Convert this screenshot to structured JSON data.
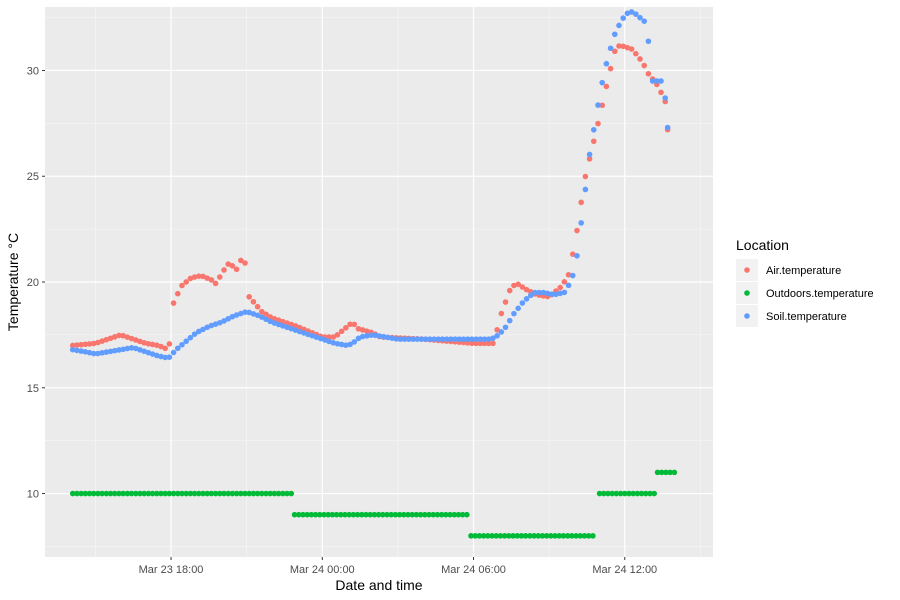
{
  "colors": {
    "panel": "#EBEBEB",
    "grid_major": "#FFFFFF",
    "Air.temperature": "#F8766D",
    "Outdoors.temperature": "#00BA38",
    "Soil.temperature": "#619CFF"
  },
  "chart_data": {
    "type": "scatter",
    "xlabel": "Date and time",
    "ylabel": "Temperature °C",
    "legend": {
      "title": "Location",
      "placement": "right"
    },
    "x_ticks": [
      "Mar 23 18:00",
      "Mar 24 00:00",
      "Mar 24 06:00",
      "Mar 24 12:00"
    ],
    "x_tick_hours": [
      18,
      24,
      30,
      36
    ],
    "xlim_hours": [
      13.0,
      39.5
    ],
    "y_ticks": [
      "10",
      "15",
      "20",
      "25",
      "30"
    ],
    "y_tick_values": [
      10,
      15,
      20,
      25,
      30
    ],
    "ylim": [
      7.0,
      33.0
    ],
    "x_start_hours": 14.1,
    "x_step_hours": 0.1667,
    "grid": true,
    "series": [
      {
        "name": "Air.temperature",
        "segments": [
          [
            14.1,
            17.0
          ],
          [
            15.0,
            17.1
          ],
          [
            16.0,
            17.5
          ],
          [
            16.5,
            17.3
          ],
          [
            17.0,
            17.1
          ],
          [
            17.5,
            17.0
          ],
          [
            17.9,
            16.8
          ],
          [
            18.0,
            17.6
          ],
          [
            18.1,
            19.0
          ],
          [
            18.4,
            19.8
          ],
          [
            18.8,
            20.2
          ],
          [
            19.2,
            20.3
          ],
          [
            19.6,
            20.1
          ],
          [
            19.8,
            19.9
          ],
          [
            20.0,
            20.4
          ],
          [
            20.3,
            20.9
          ],
          [
            20.6,
            20.6
          ],
          [
            20.8,
            21.1
          ],
          [
            21.0,
            20.8
          ],
          [
            21.1,
            19.3
          ],
          [
            21.6,
            18.6
          ],
          [
            22.0,
            18.3
          ],
          [
            23.0,
            17.9
          ],
          [
            24.0,
            17.4
          ],
          [
            24.5,
            17.4
          ],
          [
            24.8,
            17.7
          ],
          [
            25.2,
            18.1
          ],
          [
            25.4,
            17.8
          ],
          [
            26.0,
            17.6
          ],
          [
            26.3,
            17.4
          ],
          [
            28.0,
            17.3
          ],
          [
            29.0,
            17.2
          ],
          [
            30.0,
            17.1
          ],
          [
            30.8,
            17.1
          ],
          [
            31.1,
            18.5
          ],
          [
            31.5,
            19.8
          ],
          [
            31.8,
            19.9
          ],
          [
            32.0,
            19.7
          ],
          [
            32.5,
            19.4
          ],
          [
            33.0,
            19.3
          ],
          [
            33.5,
            19.8
          ],
          [
            33.8,
            20.4
          ],
          [
            34.1,
            22.4
          ],
          [
            34.4,
            24.8
          ],
          [
            34.7,
            26.3
          ],
          [
            35.0,
            27.8
          ],
          [
            35.3,
            29.4
          ],
          [
            35.6,
            30.9
          ],
          [
            35.8,
            31.2
          ],
          [
            36.3,
            31.0
          ],
          [
            36.7,
            30.4
          ],
          [
            37.0,
            29.7
          ],
          [
            37.2,
            29.5
          ],
          [
            37.6,
            28.6
          ],
          [
            37.7,
            27.2
          ]
        ]
      },
      {
        "name": "Outdoors.temperature",
        "segments": [
          [
            14.1,
            22.8,
            10
          ],
          [
            22.9,
            29.8,
            9
          ],
          [
            29.9,
            34.9,
            8
          ],
          [
            35.0,
            37.2,
            10
          ],
          [
            37.3,
            38.0,
            11
          ]
        ]
      },
      {
        "name": "Soil.temperature",
        "segments": [
          [
            14.1,
            16.8
          ],
          [
            14.6,
            16.7
          ],
          [
            15.0,
            16.6
          ],
          [
            15.5,
            16.7
          ],
          [
            16.0,
            16.8
          ],
          [
            16.5,
            16.9
          ],
          [
            17.0,
            16.7
          ],
          [
            17.5,
            16.5
          ],
          [
            17.9,
            16.4
          ],
          [
            18.2,
            16.8
          ],
          [
            18.6,
            17.2
          ],
          [
            19.0,
            17.6
          ],
          [
            19.5,
            17.9
          ],
          [
            20.0,
            18.1
          ],
          [
            20.5,
            18.4
          ],
          [
            21.0,
            18.6
          ],
          [
            21.5,
            18.4
          ],
          [
            22.0,
            18.1
          ],
          [
            22.5,
            17.9
          ],
          [
            23.0,
            17.7
          ],
          [
            23.5,
            17.5
          ],
          [
            24.0,
            17.3
          ],
          [
            24.5,
            17.1
          ],
          [
            25.0,
            17.0
          ],
          [
            25.2,
            17.1
          ],
          [
            25.5,
            17.4
          ],
          [
            26.0,
            17.5
          ],
          [
            26.5,
            17.4
          ],
          [
            27.0,
            17.3
          ],
          [
            29.0,
            17.3
          ],
          [
            30.0,
            17.3
          ],
          [
            30.7,
            17.3
          ],
          [
            31.0,
            17.5
          ],
          [
            31.3,
            17.9
          ],
          [
            31.6,
            18.5
          ],
          [
            32.0,
            19.1
          ],
          [
            32.4,
            19.5
          ],
          [
            32.8,
            19.5
          ],
          [
            33.2,
            19.4
          ],
          [
            33.6,
            19.5
          ],
          [
            33.9,
            20.1
          ],
          [
            34.1,
            21.2
          ],
          [
            34.4,
            24.0
          ],
          [
            34.6,
            26.0
          ],
          [
            34.8,
            27.4
          ],
          [
            35.0,
            28.8
          ],
          [
            35.2,
            30.0
          ],
          [
            35.4,
            30.9
          ],
          [
            35.6,
            31.7
          ],
          [
            35.8,
            32.2
          ],
          [
            36.0,
            32.6
          ],
          [
            36.2,
            32.8
          ],
          [
            36.4,
            32.7
          ],
          [
            36.6,
            32.5
          ],
          [
            36.8,
            32.3
          ],
          [
            36.95,
            31.3
          ],
          [
            37.1,
            29.5
          ],
          [
            37.4,
            29.5
          ],
          [
            37.55,
            29.5
          ],
          [
            37.7,
            27.3
          ]
        ]
      }
    ]
  }
}
